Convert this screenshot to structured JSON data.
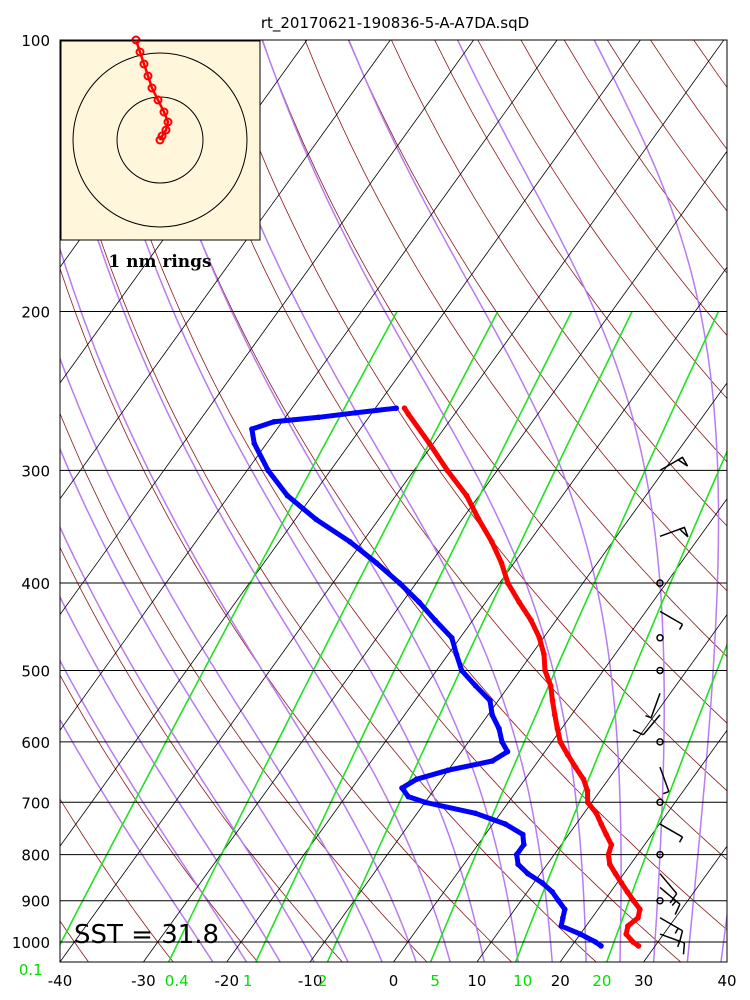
{
  "chart_data": {
    "type": "skew-t",
    "title": "rt_20170621-190836-5-A-A7DA.sqD",
    "pressure_ticks": [
      "100",
      "200",
      "300",
      "400",
      "500",
      "600",
      "700",
      "800",
      "900",
      "1000"
    ],
    "pressure_values": [
      100,
      200,
      300,
      400,
      500,
      600,
      700,
      800,
      900,
      1000
    ],
    "temp_ticks": [
      "-40",
      "-30",
      "-20",
      "-10",
      "0",
      "10",
      "20",
      "30",
      "40"
    ],
    "temp_values": [
      -40,
      -30,
      -20,
      -10,
      0,
      10,
      20,
      30,
      40
    ],
    "xlim": [
      -40,
      40
    ],
    "ylim": [
      1050,
      100
    ],
    "mixing_ratio_labels": [
      {
        "label": "0.1",
        "temp": -43.5
      },
      {
        "label": "0.4",
        "temp": -26.0
      },
      {
        "label": "1",
        "temp": -17.5
      },
      {
        "label": "2",
        "temp": -8.5
      },
      {
        "label": "5",
        "temp": 5.0
      },
      {
        "label": "10",
        "temp": 15.5
      },
      {
        "label": "20",
        "temp": 25.0
      }
    ],
    "temperature_profile": [
      {
        "p": 1010,
        "t": 28.0
      },
      {
        "p": 1000,
        "t": 27.0
      },
      {
        "p": 980,
        "t": 25.5
      },
      {
        "p": 960,
        "t": 25.0
      },
      {
        "p": 940,
        "t": 25.5
      },
      {
        "p": 920,
        "t": 25.0
      },
      {
        "p": 900,
        "t": 23.5
      },
      {
        "p": 880,
        "t": 22.0
      },
      {
        "p": 860,
        "t": 20.5
      },
      {
        "p": 840,
        "t": 19.0
      },
      {
        "p": 820,
        "t": 17.5
      },
      {
        "p": 800,
        "t": 16.5
      },
      {
        "p": 780,
        "t": 16.0
      },
      {
        "p": 760,
        "t": 14.5
      },
      {
        "p": 740,
        "t": 13.0
      },
      {
        "p": 720,
        "t": 11.5
      },
      {
        "p": 700,
        "t": 9.5
      },
      {
        "p": 680,
        "t": 8.5
      },
      {
        "p": 660,
        "t": 7.0
      },
      {
        "p": 640,
        "t": 5.0
      },
      {
        "p": 620,
        "t": 3.0
      },
      {
        "p": 600,
        "t": 1.0
      },
      {
        "p": 580,
        "t": -0.5
      },
      {
        "p": 560,
        "t": -2.0
      },
      {
        "p": 540,
        "t": -3.5
      },
      {
        "p": 520,
        "t": -5.0
      },
      {
        "p": 500,
        "t": -7.0
      },
      {
        "p": 480,
        "t": -8.5
      },
      {
        "p": 460,
        "t": -10.5
      },
      {
        "p": 440,
        "t": -13.0
      },
      {
        "p": 420,
        "t": -16.0
      },
      {
        "p": 400,
        "t": -19.0
      },
      {
        "p": 380,
        "t": -21.5
      },
      {
        "p": 360,
        "t": -24.5
      },
      {
        "p": 340,
        "t": -28.0
      },
      {
        "p": 320,
        "t": -31.5
      },
      {
        "p": 300,
        "t": -36.0
      },
      {
        "p": 280,
        "t": -40.5
      },
      {
        "p": 260,
        "t": -45.5
      },
      {
        "p": 256,
        "t": -46.5
      }
    ],
    "dewpoint_profile": [
      {
        "p": 1010,
        "t": 23.5
      },
      {
        "p": 1000,
        "t": 22.5
      },
      {
        "p": 980,
        "t": 20.0
      },
      {
        "p": 960,
        "t": 17.0
      },
      {
        "p": 940,
        "t": 16.5
      },
      {
        "p": 920,
        "t": 16.0
      },
      {
        "p": 900,
        "t": 14.5
      },
      {
        "p": 880,
        "t": 13.0
      },
      {
        "p": 860,
        "t": 11.0
      },
      {
        "p": 840,
        "t": 8.5
      },
      {
        "p": 820,
        "t": 6.5
      },
      {
        "p": 800,
        "t": 5.5
      },
      {
        "p": 780,
        "t": 5.5
      },
      {
        "p": 760,
        "t": 4.5
      },
      {
        "p": 740,
        "t": 1.5
      },
      {
        "p": 720,
        "t": -3.0
      },
      {
        "p": 700,
        "t": -10.0
      },
      {
        "p": 690,
        "t": -12.5
      },
      {
        "p": 675,
        "t": -14.0
      },
      {
        "p": 660,
        "t": -13.0
      },
      {
        "p": 645,
        "t": -10.0
      },
      {
        "p": 630,
        "t": -5.5
      },
      {
        "p": 615,
        "t": -4.5
      },
      {
        "p": 600,
        "t": -6.0
      },
      {
        "p": 580,
        "t": -7.5
      },
      {
        "p": 560,
        "t": -9.5
      },
      {
        "p": 540,
        "t": -11.0
      },
      {
        "p": 520,
        "t": -14.0
      },
      {
        "p": 500,
        "t": -17.0
      },
      {
        "p": 480,
        "t": -19.0
      },
      {
        "p": 460,
        "t": -21.0
      },
      {
        "p": 440,
        "t": -24.5
      },
      {
        "p": 420,
        "t": -28.0
      },
      {
        "p": 400,
        "t": -32.0
      },
      {
        "p": 380,
        "t": -36.5
      },
      {
        "p": 360,
        "t": -41.5
      },
      {
        "p": 340,
        "t": -47.5
      },
      {
        "p": 320,
        "t": -53.0
      },
      {
        "p": 300,
        "t": -57.5
      },
      {
        "p": 280,
        "t": -61.5
      },
      {
        "p": 270,
        "t": -63.0
      },
      {
        "p": 265,
        "t": -61.0
      },
      {
        "p": 262,
        "t": -56.0
      },
      {
        "p": 259,
        "t": -52.0
      },
      {
        "p": 256,
        "t": -47.5
      }
    ],
    "wind_barbs": [
      {
        "p": 300,
        "speed": 50,
        "dir": 60
      },
      {
        "p": 355,
        "speed": 50,
        "dir": 70
      },
      {
        "p": 400,
        "speed": 0,
        "dir": 0
      },
      {
        "p": 430,
        "speed": 5,
        "dir": 120
      },
      {
        "p": 460,
        "speed": 0,
        "dir": 0
      },
      {
        "p": 500,
        "speed": 0,
        "dir": 0
      },
      {
        "p": 530,
        "speed": 5,
        "dir": 200
      },
      {
        "p": 560,
        "speed": 10,
        "dir": 220
      },
      {
        "p": 600,
        "speed": 0,
        "dir": 0
      },
      {
        "p": 640,
        "speed": 5,
        "dir": 160
      },
      {
        "p": 700,
        "speed": 0,
        "dir": 0
      },
      {
        "p": 740,
        "speed": 5,
        "dir": 120
      },
      {
        "p": 800,
        "speed": 0,
        "dir": 0
      },
      {
        "p": 840,
        "speed": 10,
        "dir": 140
      },
      {
        "p": 870,
        "speed": 15,
        "dir": 130
      },
      {
        "p": 900,
        "speed": 0,
        "dir": 0
      },
      {
        "p": 940,
        "speed": 15,
        "dir": 120
      },
      {
        "p": 980,
        "speed": 15,
        "dir": 110
      }
    ],
    "hodograph": {
      "ring_label": "1 nm rings",
      "points": [
        [
          0,
          0
        ],
        [
          1,
          2
        ],
        [
          3,
          5
        ],
        [
          4,
          9
        ],
        [
          2,
          14
        ],
        [
          -1,
          20
        ],
        [
          -4,
          26
        ],
        [
          -6,
          32
        ],
        [
          -8,
          38
        ],
        [
          -10,
          44
        ],
        [
          -12,
          50
        ]
      ]
    },
    "annotation": "SST = 31.8",
    "colors": {
      "temperature": "#ff0000",
      "dewpoint": "#0000ff",
      "isotherm": "#000000",
      "dry_adiabat": "#8b1a1a",
      "moist_adiabat": "#b77cf0",
      "mixing_ratio": "#22e022",
      "hodograph_bg": "#fff6dc"
    }
  }
}
